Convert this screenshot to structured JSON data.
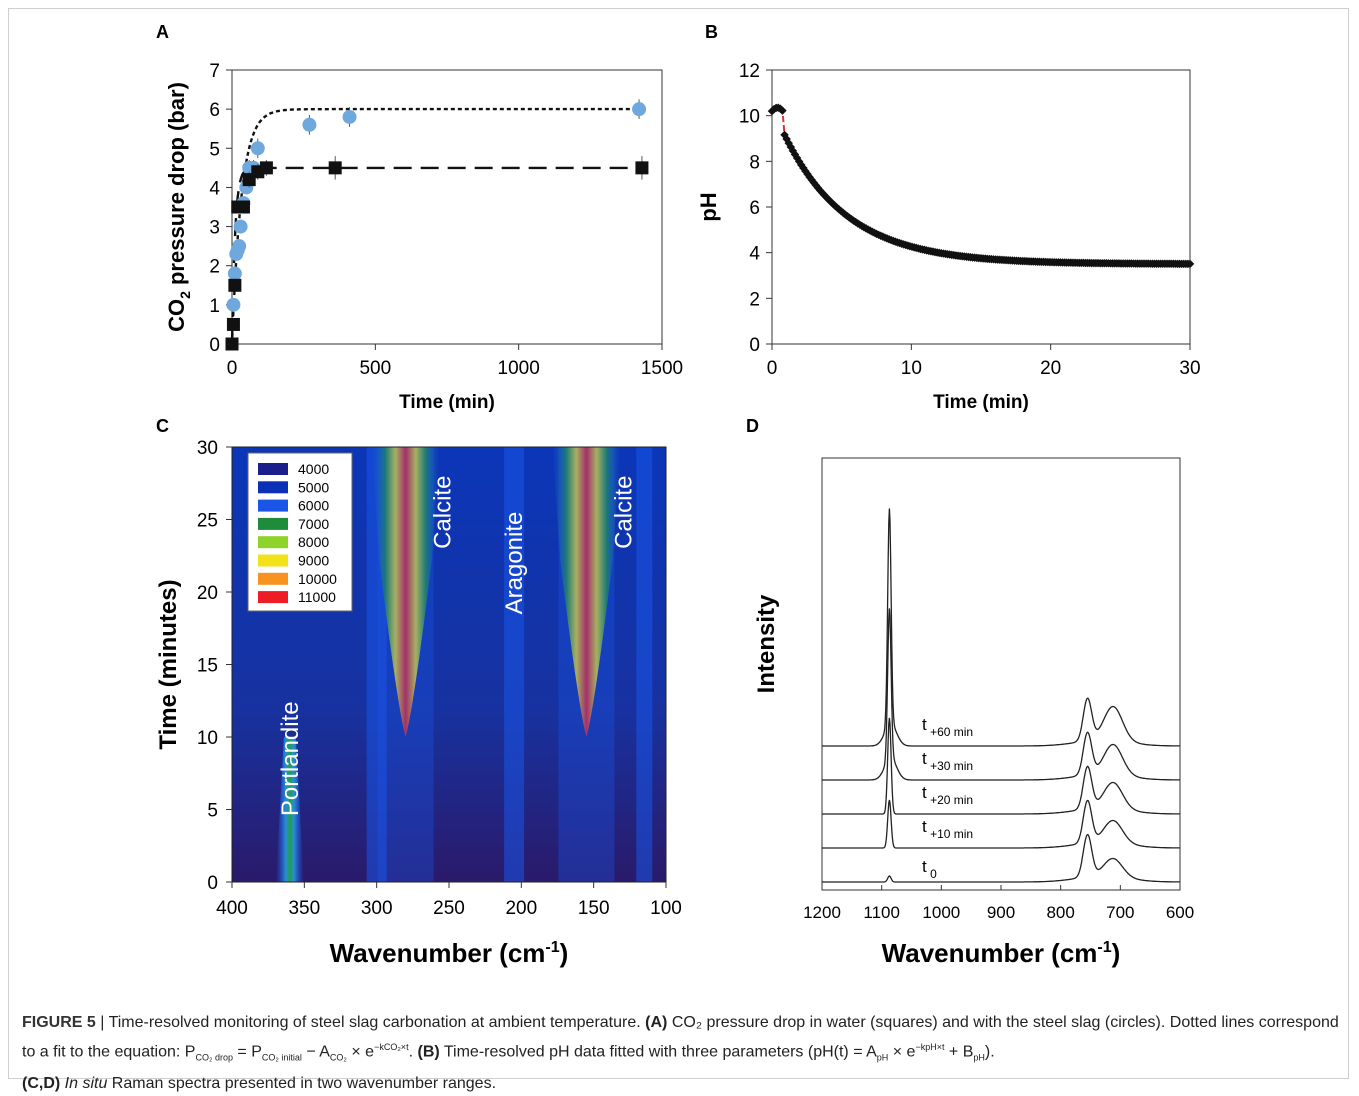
{
  "figure": {
    "caption": {
      "label": "FIGURE 5",
      "lead": "Time-resolved monitoring of steel slag carbonation at ambient temperature.",
      "a_tag": "(A)",
      "a_text": "CO₂ pressure drop in water (squares) and with the steel slag (circles). Dotted lines correspond to a fit to the equation: P",
      "eq_sub1": "CO₂ drop",
      "eq_mid1": " = P",
      "eq_sub2": "CO₂ initial",
      "eq_mid2": " − A",
      "eq_sub3": "CO₂",
      "eq_mid3": " × e",
      "eq_sup1": "−kCO₂×t",
      "eq_end": ".",
      "b_tag": "(B)",
      "b_text": "Time-resolved pH data fitted with three parameters (pH(t) = A",
      "b_sub1": "pH",
      "b_mid1": " × e",
      "b_sup1": "−kpH×t",
      "b_mid2": " + B",
      "b_sub2": "pH",
      "b_end": ").",
      "cd_tag": "(C,D)",
      "cd_italic": "In situ",
      "cd_text": " Raman spectra presented in two wavenumber ranges."
    }
  },
  "chart_data": [
    {
      "panel": "A",
      "type": "scatter",
      "xlabel": "Time (min)",
      "ylabel": "CO2 pressure drop (bar)",
      "xlim": [
        0,
        1500
      ],
      "ylim": [
        0,
        7
      ],
      "xticks": [
        "0",
        "500",
        "1000",
        "1500"
      ],
      "yticks": [
        "0",
        "1",
        "2",
        "3",
        "4",
        "5",
        "6",
        "7"
      ],
      "series": [
        {
          "marker": "circle",
          "color": "#6fa8dc",
          "x": [
            5,
            10,
            15,
            20,
            25,
            30,
            40,
            50,
            60,
            75,
            90,
            270,
            410,
            1420
          ],
          "y": [
            1.0,
            1.8,
            2.3,
            2.4,
            2.5,
            3.0,
            3.6,
            4.0,
            4.5,
            4.5,
            5.0,
            5.6,
            5.8,
            6.0
          ],
          "err": [
            0.1,
            0.1,
            0.1,
            0.1,
            0.1,
            0.1,
            0.15,
            0.15,
            0.2,
            0.2,
            0.25,
            0.25,
            0.25,
            0.25
          ]
        },
        {
          "marker": "square",
          "color": "#111111",
          "x": [
            0,
            5,
            10,
            20,
            40,
            60,
            90,
            120,
            360,
            1430
          ],
          "y": [
            0.0,
            0.5,
            1.5,
            3.5,
            3.5,
            4.2,
            4.4,
            4.5,
            4.5,
            4.5
          ],
          "err": [
            0.05,
            0.05,
            0.1,
            0.1,
            0.15,
            0.2,
            0.2,
            0.2,
            0.3,
            0.3
          ]
        }
      ],
      "fits": [
        {
          "style": "dotted",
          "P": 6.0,
          "k": 0.03
        },
        {
          "style": "dashed",
          "P": 4.5,
          "k": 0.09
        }
      ]
    },
    {
      "panel": "B",
      "type": "scatter",
      "xlabel": "Time (min)",
      "ylabel": "pH",
      "xlim": [
        0,
        30
      ],
      "ylim": [
        0,
        12
      ],
      "xticks": [
        "0",
        "10",
        "20",
        "30"
      ],
      "yticks": [
        "0",
        "2",
        "4",
        "6",
        "8",
        "10",
        "12"
      ],
      "fit": {
        "A": 6.9,
        "k": 0.22,
        "B": 3.5,
        "color": "#e03030"
      }
    },
    {
      "panel": "C",
      "type": "heatmap",
      "xlabel": "Wavenumber (cm-1)",
      "ylabel": "Time (minutes)",
      "xlim": [
        400,
        100
      ],
      "ylim": [
        0,
        30
      ],
      "xticks": [
        "400",
        "350",
        "300",
        "250",
        "200",
        "150",
        "100"
      ],
      "yticks": [
        "0",
        "5",
        "10",
        "15",
        "20",
        "25",
        "30"
      ],
      "legend": [
        {
          "label": "4000",
          "color": "#1a1f8c"
        },
        {
          "label": "5000",
          "color": "#0b2fb5"
        },
        {
          "label": "6000",
          "color": "#1a55e8"
        },
        {
          "label": "7000",
          "color": "#1e8c3a"
        },
        {
          "label": "8000",
          "color": "#8fd22a"
        },
        {
          "label": "9000",
          "color": "#f2e21a"
        },
        {
          "label": "10000",
          "color": "#f7931e"
        },
        {
          "label": "11000",
          "color": "#ee1c25"
        }
      ],
      "annotations": [
        {
          "label": "Portlandite",
          "x": 360
        },
        {
          "label": "Calcite",
          "x": 280
        },
        {
          "label": "Aragonite",
          "x": 205
        },
        {
          "label": "Calcite",
          "x": 155
        }
      ]
    },
    {
      "panel": "D",
      "type": "line",
      "xlabel": "Wavenumber (cm-1)",
      "ylabel": "Intensity",
      "xlim": [
        1200,
        600
      ],
      "xticks": [
        "1200",
        "1100",
        "1000",
        "900",
        "800",
        "700",
        "600"
      ],
      "series": [
        {
          "name": "t",
          "sub": "0",
          "peak1085": 0.1
        },
        {
          "name": "t",
          "sub": "+10 min",
          "peak1085": 0.8
        },
        {
          "name": "t",
          "sub": "+20 min",
          "peak1085": 1.6
        },
        {
          "name": "t",
          "sub": "+30 min",
          "peak1085": 2.5
        },
        {
          "name": "t",
          "sub": "+60 min",
          "peak1085": 3.6
        }
      ]
    }
  ]
}
